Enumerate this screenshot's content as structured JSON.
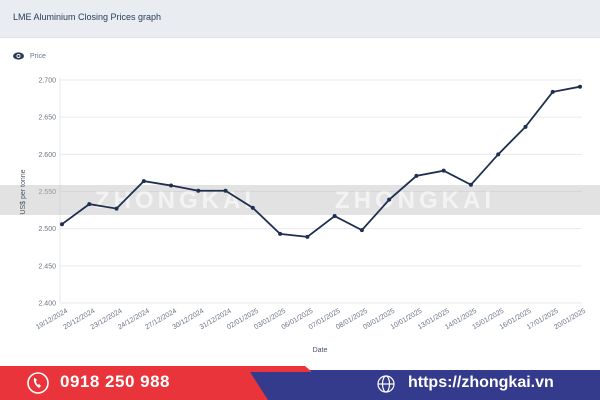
{
  "header": {
    "title": "LME Aluminium Closing Prices graph"
  },
  "legend": {
    "icon": "eye-icon",
    "label": "Price"
  },
  "watermark": "ZHONGKAI",
  "footer": {
    "phone": "0918 250 988",
    "website": "https://zhongkai.vn",
    "phone_icon": "phone-icon",
    "web_icon": "globe-icon",
    "colors": {
      "red": "#e8343a",
      "blue": "#343a8c"
    }
  },
  "chart_data": {
    "type": "line",
    "title": "LME Aluminium Closing Prices graph",
    "xlabel": "Date",
    "ylabel": "US$ per tonne",
    "ylim": [
      2400,
      2700
    ],
    "yticks": [
      "2.400",
      "2.450",
      "2.500",
      "2.550",
      "2.600",
      "2.650",
      "2.700"
    ],
    "ytick_values": [
      2400,
      2450,
      2500,
      2550,
      2600,
      2650,
      2700
    ],
    "grid": true,
    "legend_placement": "top-left",
    "line_color": "#1e2f4f",
    "categories": [
      "19/12/2024",
      "20/12/2024",
      "23/12/2024",
      "24/12/2024",
      "27/12/2024",
      "30/12/2024",
      "31/12/2024",
      "02/01/2025",
      "03/01/2025",
      "06/01/2025",
      "07/01/2025",
      "08/01/2025",
      "09/01/2025",
      "10/01/2025",
      "13/01/2025",
      "14/01/2025",
      "15/01/2025",
      "16/01/2025",
      "17/01/2025",
      "20/01/2025"
    ],
    "series": [
      {
        "name": "Price",
        "values": [
          2506,
          2533,
          2527,
          2564,
          2558,
          2551,
          2551,
          2528,
          2493,
          2489,
          2517,
          2498,
          2539,
          2571,
          2578,
          2559,
          2600,
          2637,
          2684,
          2691
        ]
      }
    ]
  }
}
